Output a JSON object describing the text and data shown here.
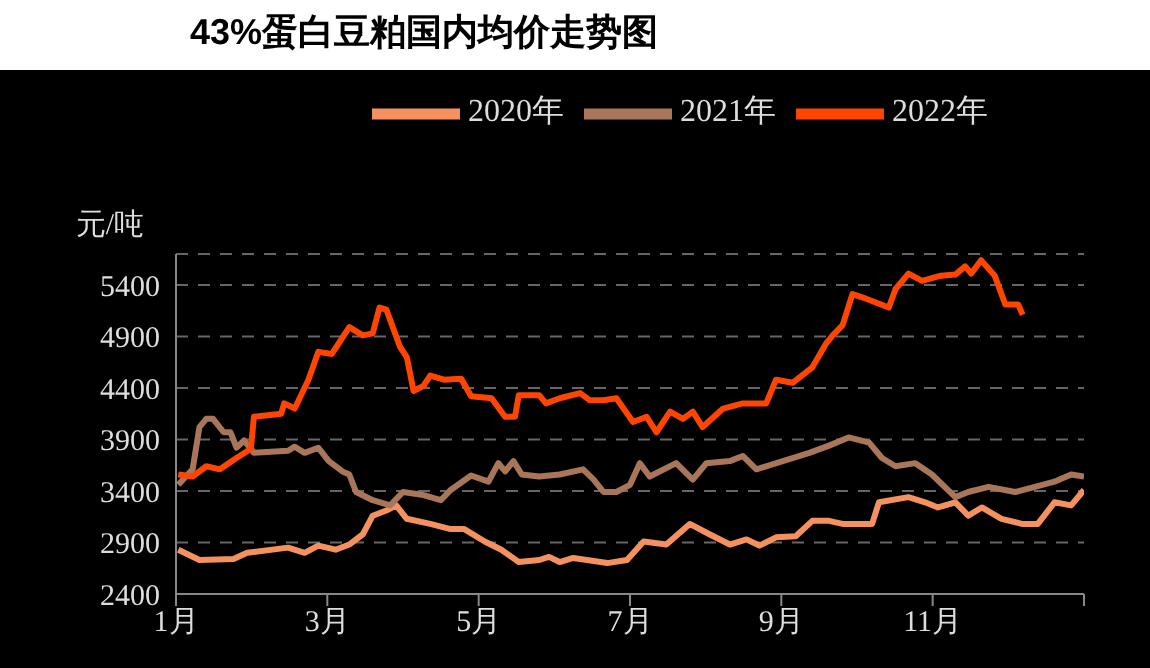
{
  "chart_data": {
    "type": "line",
    "title": "43%蛋白豆粕国内均价走势图",
    "ylabel": "元/吨",
    "xlim": [
      1,
      13
    ],
    "xticks": [
      {
        "value": 1,
        "label": "1月"
      },
      {
        "value": 3,
        "label": "3月"
      },
      {
        "value": 5,
        "label": "5月"
      },
      {
        "value": 7,
        "label": "7月"
      },
      {
        "value": 9,
        "label": "9月"
      },
      {
        "value": 11,
        "label": "11月"
      },
      {
        "value": 13,
        "label": null
      }
    ],
    "ylim": [
      2400,
      5700
    ],
    "yticks": [
      2400,
      2900,
      3400,
      3900,
      4400,
      4900,
      5400
    ],
    "grid": "y",
    "legend": "top",
    "marker": "none",
    "line_style": "solid",
    "series": [
      {
        "name": "2020年",
        "color": "#f4915e",
        "x": [
          1.03,
          1.31,
          1.76,
          1.94,
          2.48,
          2.7,
          2.88,
          3.11,
          3.29,
          3.47,
          3.6,
          3.78,
          3.91,
          4.05,
          4.36,
          4.63,
          4.81,
          5.08,
          5.3,
          5.53,
          5.8,
          5.93,
          6.07,
          6.25,
          6.43,
          6.7,
          6.96,
          7.18,
          7.48,
          7.79,
          8.05,
          8.32,
          8.54,
          8.71,
          8.93,
          9.19,
          9.41,
          9.63,
          9.81,
          10.2,
          10.29,
          10.68,
          10.9,
          11.07,
          11.3,
          11.47,
          11.65,
          11.91,
          12.18,
          12.39,
          12.61,
          12.83,
          13.0
        ],
        "values": [
          2830,
          2730,
          2740,
          2800,
          2850,
          2800,
          2870,
          2830,
          2880,
          2980,
          3160,
          3210,
          3260,
          3130,
          3080,
          3030,
          3030,
          2910,
          2830,
          2710,
          2730,
          2760,
          2710,
          2750,
          2730,
          2700,
          2730,
          2910,
          2880,
          3080,
          2980,
          2880,
          2930,
          2870,
          2950,
          2960,
          3110,
          3110,
          3080,
          3080,
          3290,
          3340,
          3290,
          3240,
          3290,
          3160,
          3240,
          3130,
          3080,
          3080,
          3290,
          3260,
          3410
        ]
      },
      {
        "name": "2021年",
        "color": "#a9765a",
        "x": [
          1.03,
          1.22,
          1.31,
          1.4,
          1.49,
          1.63,
          1.72,
          1.8,
          1.9,
          2.03,
          2.48,
          2.57,
          2.7,
          2.88,
          3.02,
          3.2,
          3.29,
          3.38,
          3.6,
          3.83,
          4.0,
          4.27,
          4.5,
          4.63,
          4.9,
          5.13,
          5.26,
          5.35,
          5.46,
          5.57,
          5.8,
          6.07,
          6.38,
          6.52,
          6.65,
          6.82,
          7.0,
          7.13,
          7.26,
          7.61,
          7.83,
          8.01,
          8.32,
          8.49,
          8.67,
          9.02,
          9.37,
          9.63,
          9.89,
          10.16,
          10.33,
          10.51,
          10.77,
          10.99,
          11.3,
          11.47,
          11.74,
          12.09,
          12.35,
          12.61,
          12.83,
          13.0
        ],
        "values": [
          3460,
          3610,
          4020,
          4100,
          4100,
          3970,
          3970,
          3820,
          3890,
          3770,
          3790,
          3830,
          3770,
          3820,
          3690,
          3590,
          3560,
          3390,
          3310,
          3260,
          3390,
          3360,
          3310,
          3410,
          3550,
          3490,
          3670,
          3590,
          3690,
          3560,
          3540,
          3560,
          3610,
          3510,
          3390,
          3390,
          3460,
          3670,
          3540,
          3670,
          3510,
          3670,
          3690,
          3740,
          3610,
          3690,
          3770,
          3840,
          3920,
          3870,
          3720,
          3640,
          3670,
          3560,
          3340,
          3390,
          3440,
          3390,
          3440,
          3490,
          3560,
          3540
        ]
      },
      {
        "name": "2022年",
        "color": "#ff4500",
        "x": [
          1.03,
          1.22,
          1.4,
          1.58,
          1.8,
          1.99,
          2.03,
          2.39,
          2.43,
          2.57,
          2.75,
          2.88,
          3.06,
          3.29,
          3.47,
          3.6,
          3.69,
          3.78,
          3.96,
          4.05,
          4.14,
          4.27,
          4.36,
          4.54,
          4.77,
          4.9,
          5.17,
          5.35,
          5.48,
          5.53,
          5.8,
          5.89,
          6.07,
          6.34,
          6.47,
          6.65,
          6.82,
          7.04,
          7.22,
          7.35,
          7.53,
          7.7,
          7.83,
          7.96,
          8.23,
          8.49,
          8.8,
          8.93,
          9.15,
          9.41,
          9.59,
          9.68,
          9.81,
          9.94,
          10.07,
          10.42,
          10.51,
          10.68,
          10.86,
          11.11,
          11.3,
          11.43,
          11.51,
          11.64,
          11.82,
          11.96,
          12.13,
          12.19
        ],
        "values": [
          3560,
          3540,
          3640,
          3610,
          3720,
          3810,
          4120,
          4150,
          4250,
          4200,
          4480,
          4750,
          4730,
          4990,
          4910,
          4930,
          5180,
          5160,
          4800,
          4700,
          4370,
          4420,
          4520,
          4480,
          4490,
          4320,
          4300,
          4120,
          4120,
          4330,
          4330,
          4250,
          4300,
          4350,
          4280,
          4280,
          4300,
          4070,
          4120,
          3970,
          4170,
          4100,
          4170,
          4020,
          4200,
          4250,
          4250,
          4480,
          4450,
          4600,
          4830,
          4910,
          5010,
          5310,
          5280,
          5180,
          5360,
          5510,
          5440,
          5490,
          5500,
          5580,
          5510,
          5640,
          5490,
          5210,
          5210,
          5110
        ]
      }
    ]
  }
}
